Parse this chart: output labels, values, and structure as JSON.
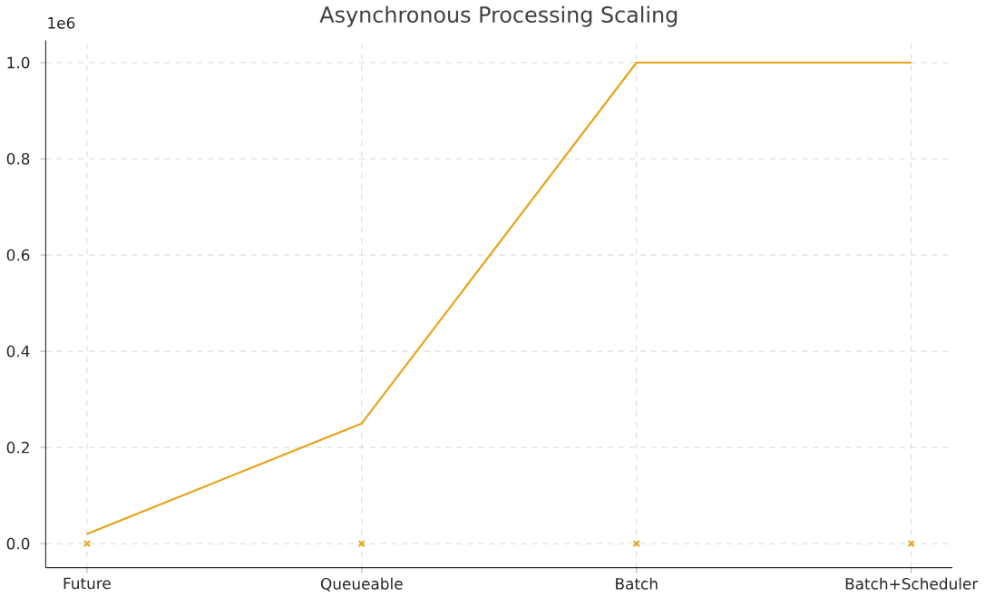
{
  "chart_data": {
    "type": "line",
    "title": "Asynchronous Processing Scaling",
    "categories": [
      "Future",
      "Queueable",
      "Batch",
      "Batch+Scheduler"
    ],
    "series": [
      {
        "color": "#e8a317",
        "values": [
          0.02,
          0.25,
          1.0,
          1.0
        ],
        "marker": "none"
      },
      {
        "type": "scatter",
        "color": "#e8a317",
        "values": [
          0,
          0,
          0,
          0
        ],
        "marker": "cross"
      }
    ],
    "ylim": [
      -0.05,
      1.046
    ],
    "yticks": [
      {
        "value": 0,
        "label": "0.0"
      },
      {
        "value": 0.2,
        "label": "0.2"
      },
      {
        "value": 0.4,
        "label": "0.4"
      },
      {
        "value": 0.6,
        "label": "0.6"
      },
      {
        "value": 0.8,
        "label": "0.8"
      },
      {
        "value": 1.0,
        "label": "1.0"
      }
    ],
    "annotations": [
      "1e6"
    ],
    "grid": true
  }
}
